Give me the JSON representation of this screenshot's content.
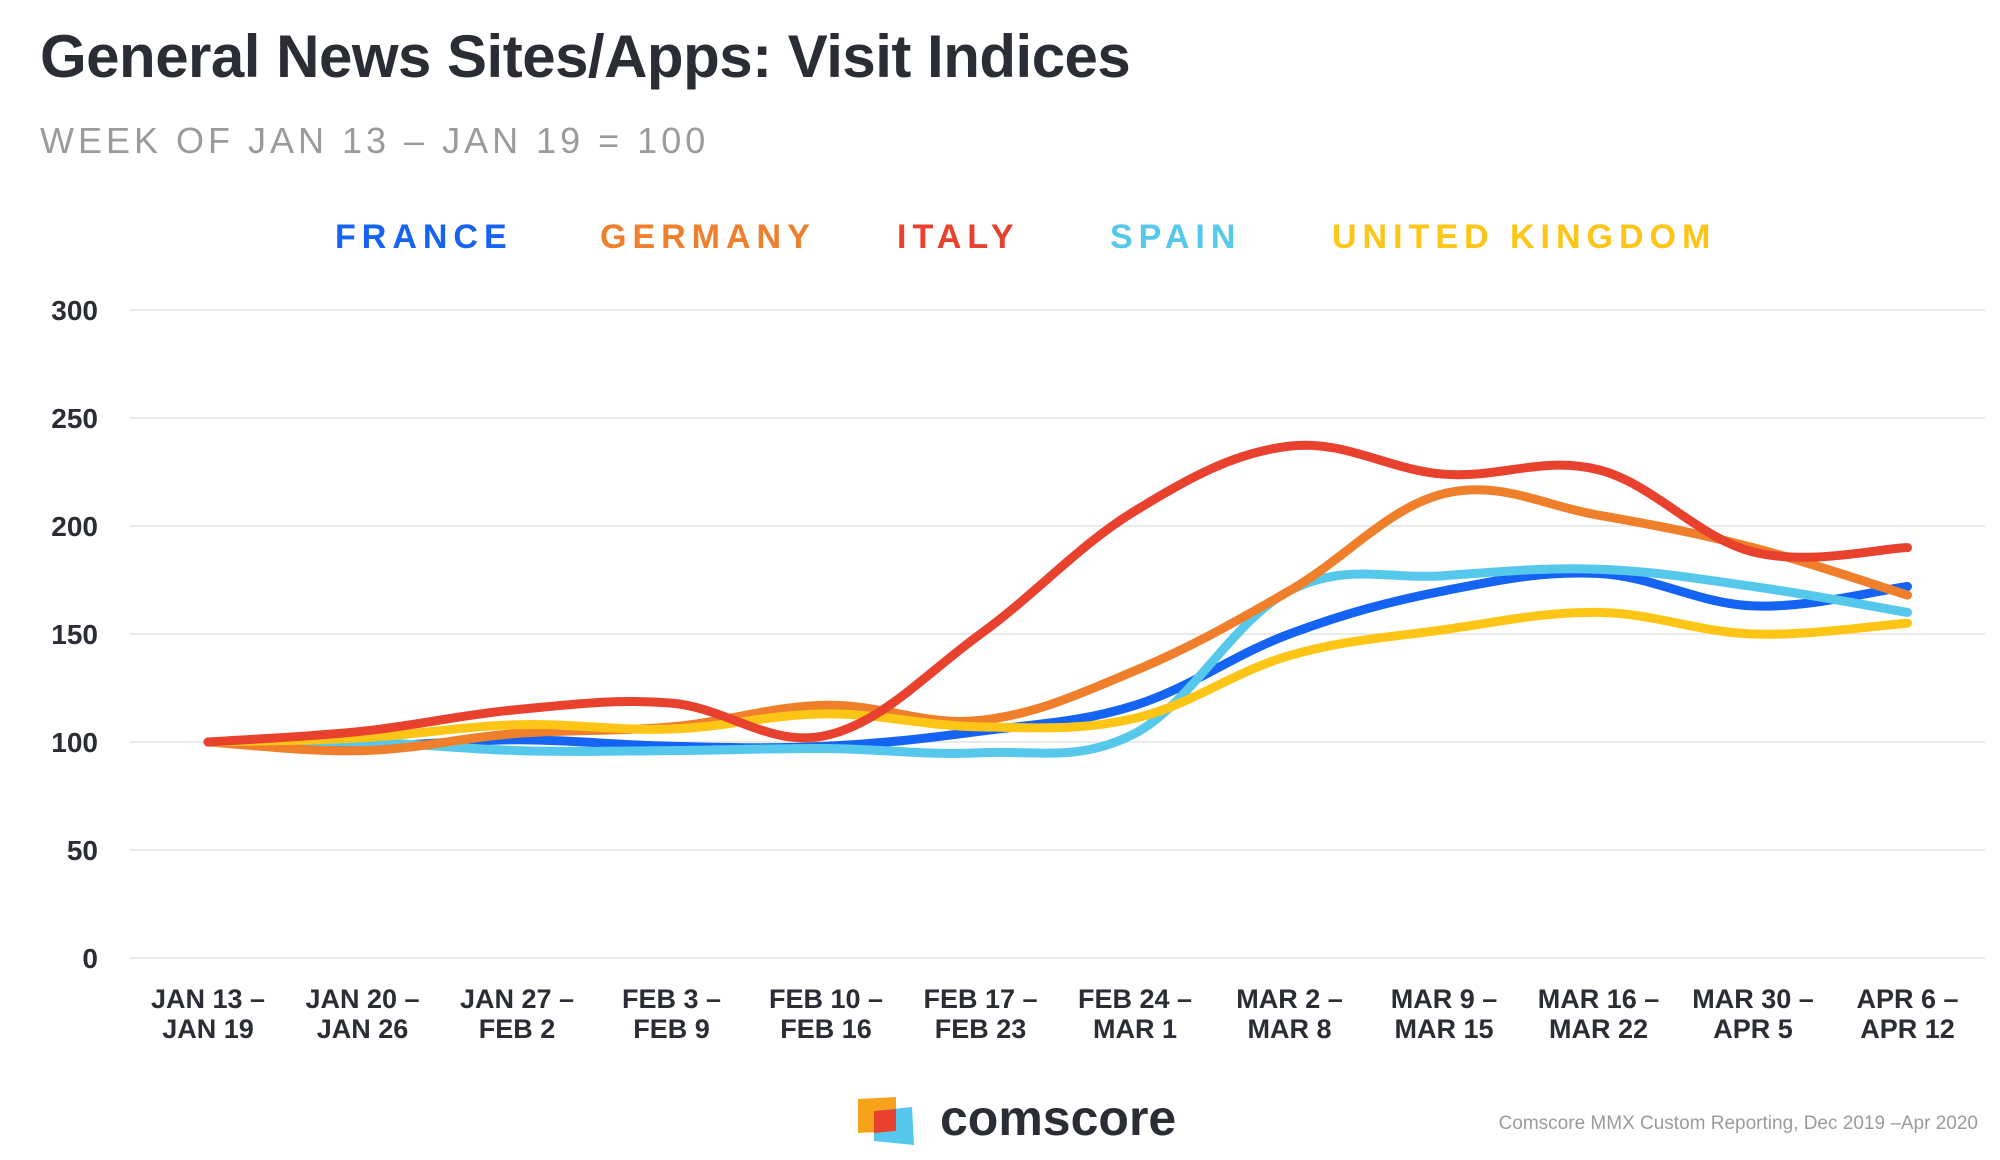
{
  "header": {
    "title": "General News Sites/Apps: Visit Indices",
    "subtitle": "WEEK OF JAN 13 – JAN 19 = 100"
  },
  "footer": {
    "brand": "comscore",
    "source": "Comscore MMX Custom Reporting, Dec 2019 –Apr 2020"
  },
  "chart_data": {
    "type": "line",
    "title": "General News Sites/Apps: Visit Indices",
    "subtitle": "WEEK OF JAN 13 – JAN 19 = 100",
    "ylim": [
      0,
      300
    ],
    "yticks": [
      0,
      50,
      100,
      150,
      200,
      250,
      300
    ],
    "grid": true,
    "legend_position": "top",
    "categories": [
      [
        "JAN 13 –",
        "JAN 19"
      ],
      [
        "JAN 20 –",
        "JAN 26"
      ],
      [
        "JAN 27 –",
        "FEB 2"
      ],
      [
        "FEB 3 –",
        "FEB 9"
      ],
      [
        "FEB 10 –",
        "FEB 16"
      ],
      [
        "FEB 17 –",
        "FEB 23"
      ],
      [
        "FEB 24 –",
        "MAR 1"
      ],
      [
        "MAR 2 –",
        "MAR 8"
      ],
      [
        "MAR 9 –",
        "MAR 15"
      ],
      [
        "MAR 16 –",
        "MAR 22"
      ],
      [
        "MAR 30 –",
        "APR 5"
      ],
      [
        "APR 6 –",
        "APR 12"
      ]
    ],
    "series": [
      {
        "name": "FRANCE",
        "color": "#1463f3",
        "values": [
          100,
          98,
          101,
          98,
          98,
          105,
          117,
          150,
          170,
          178,
          163,
          172
        ]
      },
      {
        "name": "GERMANY",
        "color": "#f07f2c",
        "values": [
          100,
          96,
          104,
          107,
          117,
          110,
          133,
          170,
          215,
          205,
          190,
          168
        ]
      },
      {
        "name": "ITALY",
        "color": "#e8412e",
        "values": [
          100,
          105,
          115,
          118,
          103,
          150,
          207,
          237,
          224,
          226,
          188,
          190
        ]
      },
      {
        "name": "SPAIN",
        "color": "#56c8eb",
        "values": [
          100,
          100,
          96,
          96,
          97,
          95,
          104,
          170,
          177,
          180,
          172,
          160
        ]
      },
      {
        "name": "UNITED KINGDOM",
        "color": "#fdc617",
        "values": [
          100,
          102,
          108,
          106,
          113,
          107,
          111,
          140,
          152,
          160,
          150,
          155
        ]
      }
    ]
  }
}
